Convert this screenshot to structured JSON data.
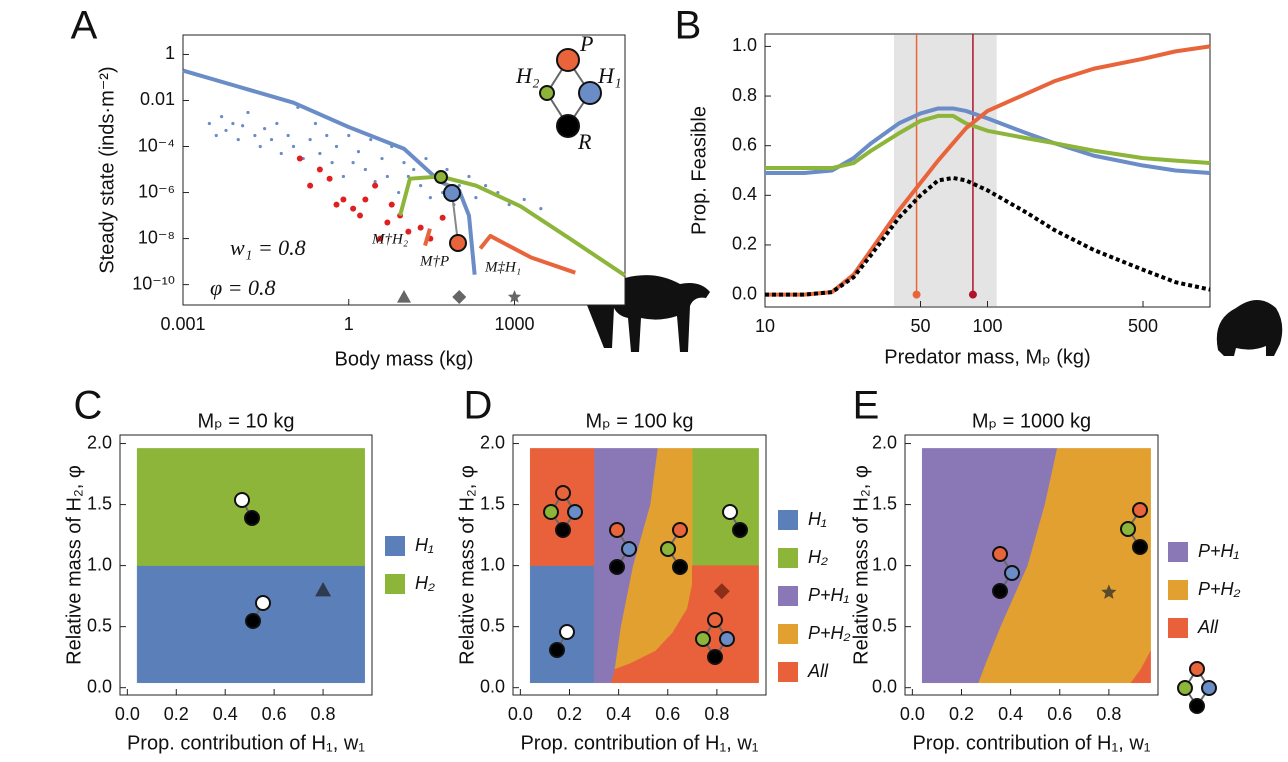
{
  "chart_data": [
    {
      "type": "line",
      "panel_label": "A",
      "x_label": "Body mass (kg)",
      "y_label": "Steady state (inds·m⁻²)",
      "x_log": true,
      "y_log": true,
      "xlim": [
        0.001,
        100000
      ],
      "ylim": [
        1.3e-11,
        7
      ],
      "xticks": [
        0.001,
        1,
        1000
      ],
      "yticks": [
        1,
        0.01,
        {
          "value": 0.0001,
          "label": "10⁻⁴"
        },
        {
          "value": 1e-06,
          "label": "10⁻⁶"
        },
        {
          "value": 1e-08,
          "label": "10⁻⁸"
        },
        {
          "value": 1e-10,
          "label": "10⁻¹⁰"
        }
      ],
      "series": [
        {
          "mode": "markers",
          "color": "#6a8cc7",
          "x": [
            0.003,
            0.004,
            0.005,
            0.006,
            0.008,
            0.01,
            0.012,
            0.015,
            0.02,
            0.025,
            0.03,
            0.04,
            0.05,
            0.06,
            0.08,
            0.1,
            0.12,
            0.15,
            0.2,
            0.25,
            0.3,
            0.4,
            0.5,
            0.6,
            0.8,
            1,
            1.2,
            1.5,
            2,
            2.5,
            3,
            4,
            5,
            6,
            8,
            10,
            12,
            15,
            20,
            25,
            30,
            40,
            50,
            60,
            80,
            100,
            150,
            200,
            300,
            500,
            800,
            1500,
            3000
          ],
          "values": [
            0.001,
            0.0003,
            0.002,
            0.0005,
            0.001,
            0.0002,
            0.0008,
            0.003,
            0.0003,
            0.0001,
            0.0006,
            0.0002,
            0.001,
            5e-05,
            0.0003,
            0.0001,
            0.005,
            3e-05,
            0.0002,
            0.001,
            5e-05,
            0.0003,
            2e-05,
            0.0001,
            5e-06,
            0.0003,
            2e-05,
            6e-05,
            1e-05,
            0.0002,
            3e-06,
            3e-05,
            5e-06,
            0.0001,
            1e-06,
            2e-05,
            5e-06,
            1e-05,
            2e-06,
            3e-05,
            6e-07,
            4e-06,
            1e-06,
            1e-05,
            3e-07,
            2e-06,
            5e-06,
            6e-07,
            2e-06,
            1e-06,
            3e-07,
            5e-07,
            2e-07
          ]
        },
        {
          "mode": "markers",
          "color": "#e02020",
          "x": [
            0.13,
            0.2,
            0.3,
            0.45,
            0.6,
            0.8,
            1.2,
            1.6,
            2,
            3,
            3.7,
            5,
            6,
            8.5,
            12,
            20,
            30,
            50
          ],
          "values": [
            3e-05,
            2e-06,
            1e-05,
            4e-06,
            3e-07,
            5e-07,
            2e-07,
            1e-07,
            5e-07,
            2e-06,
            1e-08,
            5e-08,
            3e-07,
            1e-07,
            2e-08,
            3e-08,
            1e-08,
            8e-08
          ]
        },
        {
          "mode": "line",
          "color": "#6a8cc7",
          "x": [
            0.001,
            0.01,
            0.1,
            1,
            10,
            45,
            100,
            150,
            190
          ],
          "values": [
            0.2,
            0.04,
            0.008,
            0.0007,
            8e-05,
            3e-06,
            1.2e-06,
            1e-07,
            2.7e-10
          ]
        },
        {
          "mode": "line",
          "color": "#8db53a",
          "x": [
            8.5,
            12.8,
            45,
            200,
            1300,
            10000,
            100000
          ],
          "values": [
            1e-07,
            4e-06,
            5e-06,
            2e-06,
            2.5e-07,
            1e-08,
            2.5e-10
          ]
        },
        {
          "mode": "line",
          "color": "#e8643a",
          "x": [
            24,
            29.5,
            null,
            240,
            365,
            2000,
            12600
          ],
          "values": [
            5e-09,
            2.7e-08,
            null,
            3.7e-09,
            1.3e-08,
            1.5e-09,
            3.3e-10
          ]
        }
      ],
      "markers": [
        {
          "x": 10,
          "shape": "triangle"
        },
        {
          "x": 100,
          "shape": "diamond"
        },
        {
          "x": 1000,
          "shape": "star"
        }
      ],
      "marker_color": "#666666",
      "annotations": [
        "w₁ = 0.8",
        "φ = 0.8",
        "M†H₂",
        "M†P",
        "M‡H₁"
      ],
      "node_labels": [
        "P",
        "H₂",
        "H₁",
        "R"
      ]
    },
    {
      "type": "line",
      "panel_label": "B",
      "x_label": "Predator mass, Mₚ (kg)",
      "y_label": "Prop. Feasible",
      "x_log": true,
      "xlim": [
        10,
        1000
      ],
      "ylim": [
        -0.05,
        1.05
      ],
      "xticks": [
        10,
        50,
        100,
        500
      ],
      "yticks": [
        {
          "value": 0,
          "label": "0.0"
        },
        0.2,
        0.4,
        0.6,
        0.8,
        {
          "value": 1,
          "label": "1.0"
        }
      ],
      "x": [
        10,
        15,
        20,
        25,
        30,
        40,
        50,
        60,
        70,
        80,
        100,
        150,
        200,
        300,
        500,
        700,
        1000
      ],
      "series": [
        {
          "mode": "line",
          "color": "#6a8cc7",
          "values": [
            0.49,
            0.49,
            0.5,
            0.55,
            0.61,
            0.69,
            0.73,
            0.75,
            0.75,
            0.74,
            0.71,
            0.65,
            0.61,
            0.56,
            0.52,
            0.5,
            0.49
          ]
        },
        {
          "mode": "line",
          "color": "#8db53a",
          "values": [
            0.51,
            0.51,
            0.51,
            0.53,
            0.58,
            0.65,
            0.7,
            0.72,
            0.72,
            0.69,
            0.66,
            0.63,
            0.61,
            0.58,
            0.55,
            0.54,
            0.53
          ]
        },
        {
          "mode": "line",
          "color": "#e8643a",
          "values": [
            0,
            0,
            0.01,
            0.08,
            0.18,
            0.34,
            0.45,
            0.54,
            0.61,
            0.67,
            0.74,
            0.81,
            0.86,
            0.91,
            0.95,
            0.98,
            1
          ]
        },
        {
          "mode": "line",
          "color": "#000000",
          "dash": true,
          "values": [
            0,
            0,
            0.01,
            0.07,
            0.16,
            0.31,
            0.4,
            0.46,
            0.47,
            0.46,
            0.42,
            0.33,
            0.26,
            0.18,
            0.1,
            0.05,
            0.02
          ]
        }
      ],
      "shaded_range": [
        38,
        110
      ],
      "vlines": [
        {
          "value": 48,
          "color": "#e8643a"
        },
        {
          "value": 86,
          "color": "#b0142a"
        }
      ]
    },
    {
      "type": "region",
      "panel_label": "C",
      "title": "Mₚ = 10 kg",
      "x_label": "Prop. contribution of H₁, w₁",
      "y_label": "Relative mass of H₂, φ",
      "xlim": [
        -0.03,
        1.0
      ],
      "ylim": [
        -0.06,
        2.07
      ],
      "xticks": [
        {
          "value": 0,
          "label": "0.0"
        },
        0.2,
        0.4,
        0.6,
        0.8
      ],
      "yticks": [
        {
          "value": 0,
          "label": "0.0"
        },
        0.5,
        {
          "value": 1,
          "label": "1.0"
        },
        1.5,
        {
          "value": 2,
          "label": "2.0"
        }
      ],
      "series": [
        {
          "name": "H₁",
          "color": "#5b7fb8",
          "polygons": [
            [
              [
                0.04,
                0.04
              ],
              [
                0.97,
                0.04
              ],
              [
                0.97,
                1
              ],
              [
                0.04,
                1
              ]
            ]
          ]
        },
        {
          "name": "H₂",
          "color": "#8db53a",
          "polygons": [
            [
              [
                0.04,
                1
              ],
              [
                0.97,
                1
              ],
              [
                0.97,
                1.96
              ],
              [
                0.04,
                1.96
              ]
            ]
          ]
        }
      ],
      "marker": {
        "x": 0.8,
        "y": 0.8,
        "shape": "triangle",
        "color": "#2e3b4e"
      }
    },
    {
      "type": "region",
      "panel_label": "D",
      "title": "Mₚ = 100 kg",
      "x_label": "Prop. contribution of H₁, w₁",
      "y_label": "Relative mass of H₂, φ",
      "xlim": [
        -0.03,
        1.0
      ],
      "ylim": [
        -0.06,
        2.07
      ],
      "xticks": [
        {
          "value": 0,
          "label": "0.0"
        },
        0.2,
        0.4,
        0.6,
        0.8
      ],
      "yticks": [
        {
          "value": 0,
          "label": "0.0"
        },
        0.5,
        {
          "value": 1,
          "label": "1.0"
        },
        1.5,
        {
          "value": 2,
          "label": "2.0"
        }
      ],
      "series": [
        {
          "name": "H₁",
          "color": "#5b7fb8",
          "polygons": [
            [
              [
                0.04,
                0.04
              ],
              [
                0.3,
                0.04
              ],
              [
                0.3,
                1
              ],
              [
                0.04,
                1
              ]
            ]
          ]
        },
        {
          "name": "H₂",
          "color": "#8db53a",
          "polygons": [
            [
              [
                0.7,
                1
              ],
              [
                0.97,
                1
              ],
              [
                0.97,
                1.96
              ],
              [
                0.7,
                1.96
              ]
            ]
          ]
        },
        {
          "name": "P+H₁",
          "color": "#8a78b6",
          "polygons": [
            [
              [
                0.3,
                0.04
              ],
              [
                0.37,
                0.04
              ],
              [
                0.385,
                0.15
              ],
              [
                0.41,
                0.5
              ],
              [
                0.46,
                1
              ],
              [
                0.53,
                1.5
              ],
              [
                0.56,
                1.96
              ],
              [
                0.3,
                1.96
              ]
            ]
          ]
        },
        {
          "name": "P+H₂",
          "color": "#e1a030",
          "polygons": [
            [
              [
                0.385,
                0.15
              ],
              [
                0.45,
                0.2
              ],
              [
                0.55,
                0.3
              ],
              [
                0.62,
                0.45
              ],
              [
                0.68,
                0.65
              ],
              [
                0.7,
                0.85
              ],
              [
                0.7,
                1.96
              ],
              [
                0.56,
                1.96
              ],
              [
                0.53,
                1.5
              ],
              [
                0.46,
                1
              ],
              [
                0.41,
                0.5
              ]
            ]
          ]
        },
        {
          "name": "All",
          "color": "#e8613a",
          "polygons": [
            [
              [
                0.04,
                1
              ],
              [
                0.3,
                1
              ],
              [
                0.3,
                1.96
              ],
              [
                0.04,
                1.96
              ]
            ],
            [
              [
                0.37,
                0.04
              ],
              [
                0.97,
                0.04
              ],
              [
                0.97,
                1
              ],
              [
                0.7,
                1
              ],
              [
                0.7,
                0.85
              ],
              [
                0.68,
                0.65
              ],
              [
                0.62,
                0.45
              ],
              [
                0.55,
                0.3
              ],
              [
                0.45,
                0.2
              ],
              [
                0.385,
                0.15
              ]
            ]
          ]
        }
      ],
      "marker": {
        "x": 0.82,
        "y": 0.79,
        "shape": "diamond",
        "color": "#8b2e1a"
      }
    },
    {
      "type": "region",
      "panel_label": "E",
      "title": "Mₚ = 1000 kg",
      "x_label": "Prop. contribution of H₁, w₁",
      "y_label": "Relative mass of H₂, φ",
      "xlim": [
        -0.03,
        1.0
      ],
      "ylim": [
        -0.06,
        2.07
      ],
      "xticks": [
        {
          "value": 0,
          "label": "0.0"
        },
        0.2,
        0.4,
        0.6,
        0.8
      ],
      "yticks": [
        {
          "value": 0,
          "label": "0.0"
        },
        0.5,
        {
          "value": 1,
          "label": "1.0"
        },
        1.5,
        {
          "value": 2,
          "label": "2.0"
        }
      ],
      "series": [
        {
          "name": "P+H₁",
          "color": "#8a78b6",
          "polygons": [
            [
              [
                0.04,
                0.04
              ],
              [
                0.27,
                0.04
              ],
              [
                0.3,
                0.2
              ],
              [
                0.36,
                0.5
              ],
              [
                0.47,
                1
              ],
              [
                0.54,
                1.5
              ],
              [
                0.59,
                1.96
              ],
              [
                0.04,
                1.96
              ]
            ]
          ]
        },
        {
          "name": "P+H₂",
          "color": "#e1a030",
          "polygons": [
            [
              [
                0.27,
                0.04
              ],
              [
                0.89,
                0.04
              ],
              [
                0.93,
                0.15
              ],
              [
                0.97,
                0.3
              ],
              [
                0.97,
                1.96
              ],
              [
                0.59,
                1.96
              ],
              [
                0.54,
                1.5
              ],
              [
                0.47,
                1
              ],
              [
                0.36,
                0.5
              ],
              [
                0.3,
                0.2
              ]
            ]
          ]
        },
        {
          "name": "All",
          "color": "#e8613a",
          "polygons": [
            [
              [
                0.89,
                0.04
              ],
              [
                0.97,
                0.04
              ],
              [
                0.97,
                0.3
              ],
              [
                0.93,
                0.15
              ]
            ]
          ]
        }
      ],
      "marker": {
        "x": 0.8,
        "y": 0.78,
        "shape": "star",
        "color": "#5a4a2a"
      }
    }
  ]
}
